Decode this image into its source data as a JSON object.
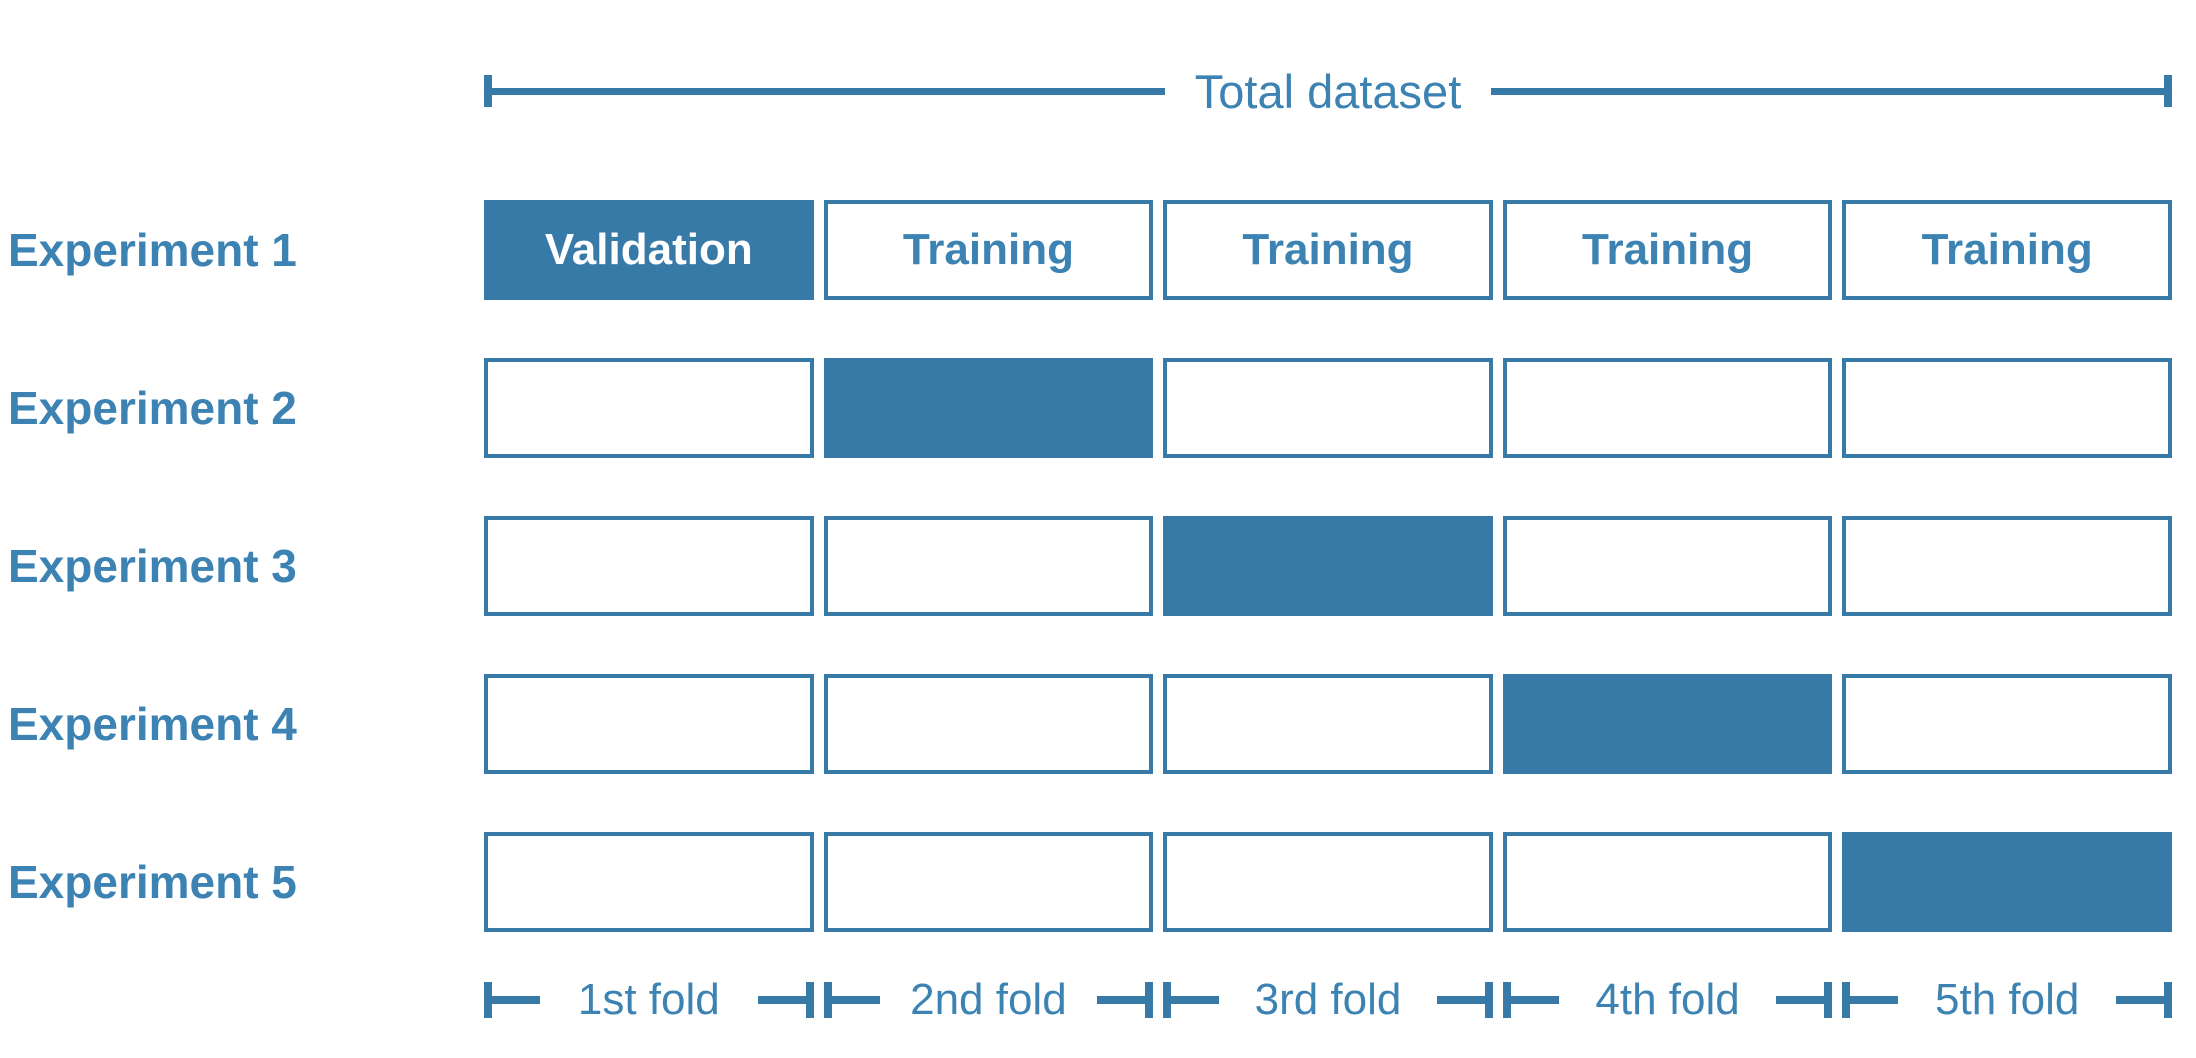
{
  "colors": {
    "fill_blue": "#377AA8",
    "text_blue": "#3C83B3",
    "validation_text": "#FFFFFF",
    "background": "#FFFFFF"
  },
  "header": {
    "title": "Total dataset"
  },
  "rows": [
    {
      "label": "Experiment 1",
      "cells": [
        {
          "text": "Validation",
          "state": "filled"
        },
        {
          "text": "Training",
          "state": "empty"
        },
        {
          "text": "Training",
          "state": "empty"
        },
        {
          "text": "Training",
          "state": "empty"
        },
        {
          "text": "Training",
          "state": "empty"
        }
      ]
    },
    {
      "label": "Experiment 2",
      "cells": [
        {
          "text": "",
          "state": "empty"
        },
        {
          "text": "",
          "state": "filled"
        },
        {
          "text": "",
          "state": "empty"
        },
        {
          "text": "",
          "state": "empty"
        },
        {
          "text": "",
          "state": "empty"
        }
      ]
    },
    {
      "label": "Experiment 3",
      "cells": [
        {
          "text": "",
          "state": "empty"
        },
        {
          "text": "",
          "state": "empty"
        },
        {
          "text": "",
          "state": "filled"
        },
        {
          "text": "",
          "state": "empty"
        },
        {
          "text": "",
          "state": "empty"
        }
      ]
    },
    {
      "label": "Experiment 4",
      "cells": [
        {
          "text": "",
          "state": "empty"
        },
        {
          "text": "",
          "state": "empty"
        },
        {
          "text": "",
          "state": "empty"
        },
        {
          "text": "",
          "state": "filled"
        },
        {
          "text": "",
          "state": "empty"
        }
      ]
    },
    {
      "label": "Experiment 5",
      "cells": [
        {
          "text": "",
          "state": "empty"
        },
        {
          "text": "",
          "state": "empty"
        },
        {
          "text": "",
          "state": "empty"
        },
        {
          "text": "",
          "state": "empty"
        },
        {
          "text": "",
          "state": "filled"
        }
      ]
    }
  ],
  "folds": [
    {
      "label": "1st fold"
    },
    {
      "label": "2nd fold"
    },
    {
      "label": "3rd fold"
    },
    {
      "label": "4th fold"
    },
    {
      "label": "5th fold"
    }
  ]
}
